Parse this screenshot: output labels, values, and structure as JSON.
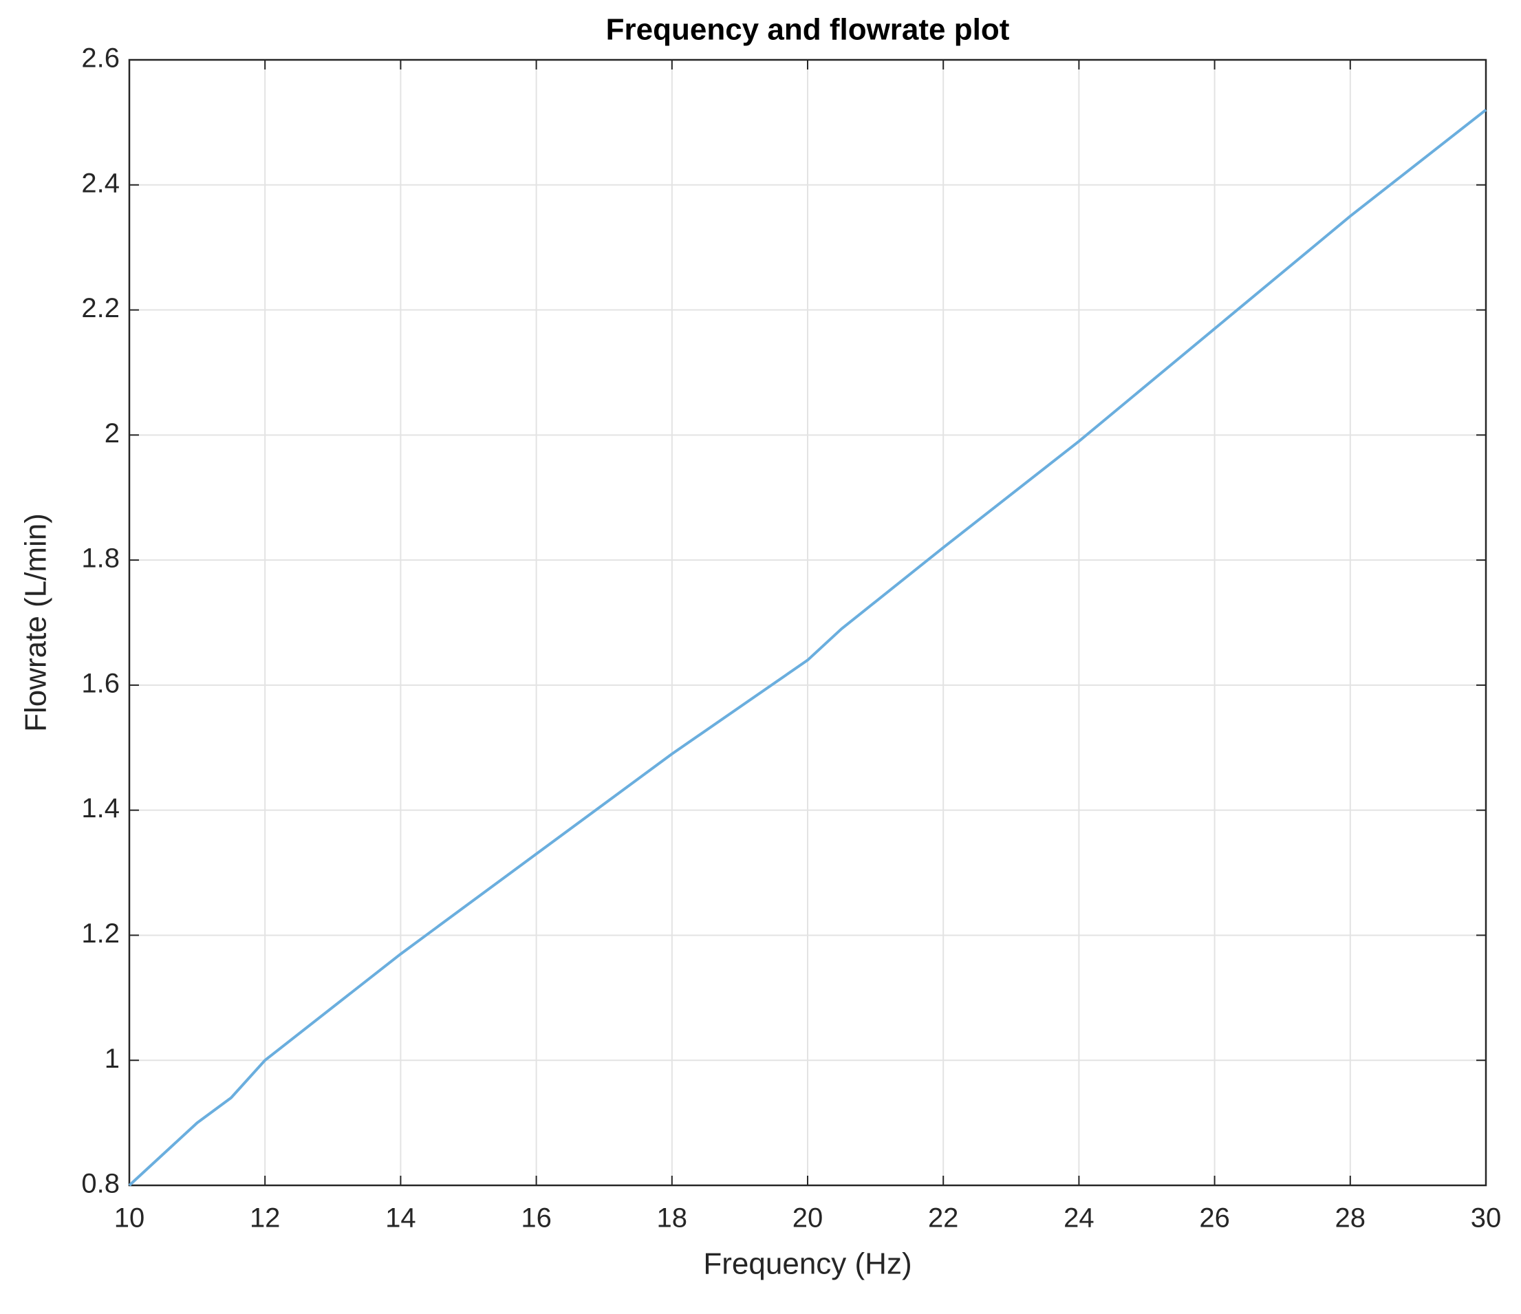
{
  "chart_data": {
    "type": "line",
    "title": "Frequency and flowrate plot",
    "x_label": "Frequency (Hz)",
    "y_label": "Flowrate (L/min)",
    "x": [
      10,
      11,
      11.5,
      12,
      14,
      16,
      18,
      20,
      20.5,
      22,
      24,
      26,
      28,
      30
    ],
    "series": [
      {
        "color": "#6aaede",
        "values": [
          0.8,
          0.9,
          0.94,
          1.0,
          1.17,
          1.33,
          1.49,
          1.64,
          1.69,
          1.82,
          1.99,
          2.17,
          2.35,
          2.52
        ]
      }
    ],
    "xlim": [
      10,
      30
    ],
    "xticks": [
      10,
      12,
      14,
      16,
      18,
      20,
      22,
      24,
      26,
      28,
      30
    ],
    "ylim": [
      0.8,
      2.6
    ],
    "yticks": [
      0.8,
      1,
      1.2,
      1.4,
      1.6,
      1.8,
      2,
      2.2,
      2.4,
      2.6
    ],
    "grid": true
  }
}
